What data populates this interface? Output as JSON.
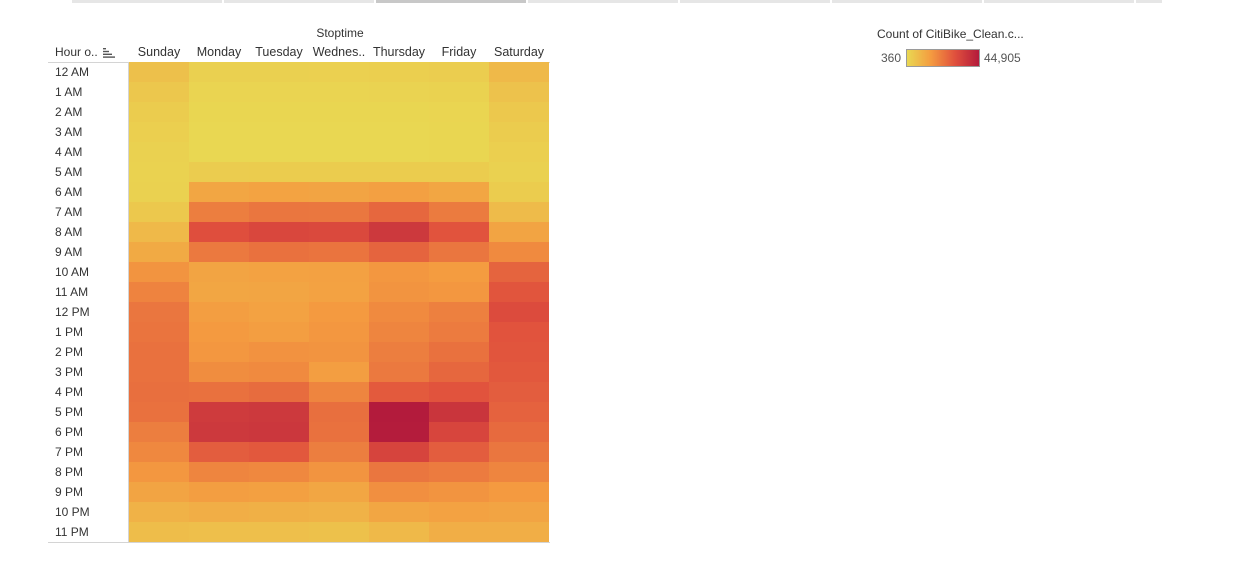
{
  "tabs": {
    "count": 7,
    "active_index": 2
  },
  "header": {
    "column_group_title": "Stoptime",
    "row_header": "Hour o..",
    "sort_icon": "sort-descending-icon"
  },
  "legend": {
    "title": "Count of CitiBike_Clean.c...",
    "min_label": "360",
    "max_label": "44,905",
    "colors": [
      "#e9d852",
      "#f49b40",
      "#e0503d",
      "#b31b3c"
    ]
  },
  "chart_data": {
    "type": "heatmap",
    "title": "",
    "x_title": "Stoptime",
    "y_title": "Hour o..",
    "x": [
      "Sunday",
      "Monday",
      "Tuesday",
      "Wednes..",
      "Thursday",
      "Friday",
      "Saturday"
    ],
    "y": [
      "12 AM",
      "1 AM",
      "2 AM",
      "3 AM",
      "4 AM",
      "5 AM",
      "6 AM",
      "7 AM",
      "8 AM",
      "9 AM",
      "10 AM",
      "11 AM",
      "12 PM",
      "1 PM",
      "2 PM",
      "3 PM",
      "4 PM",
      "5 PM",
      "6 PM",
      "7 PM",
      "8 PM",
      "9 PM",
      "10 PM",
      "11 PM"
    ],
    "color_range": [
      360,
      44905
    ],
    "values": [
      [
        6200,
        2300,
        2300,
        2400,
        2500,
        3100,
        7800
      ],
      [
        4600,
        1400,
        1300,
        1400,
        1500,
        1800,
        5600
      ],
      [
        3400,
        900,
        800,
        900,
        900,
        1100,
        4300
      ],
      [
        2600,
        700,
        600,
        600,
        700,
        800,
        3300
      ],
      [
        2000,
        700,
        600,
        600,
        600,
        800,
        2500
      ],
      [
        1700,
        3200,
        3300,
        3300,
        3400,
        3400,
        2000
      ],
      [
        2100,
        12500,
        13200,
        13000,
        13900,
        12500,
        3400
      ],
      [
        4200,
        21000,
        22500,
        22300,
        25500,
        21600,
        7300
      ],
      [
        7900,
        30500,
        32500,
        32000,
        36500,
        29500,
        13000
      ],
      [
        11500,
        22000,
        23500,
        23000,
        26000,
        22500,
        18500
      ],
      [
        16500,
        13000,
        13500,
        13800,
        16000,
        15000,
        26000
      ],
      [
        20000,
        12500,
        12800,
        13500,
        16500,
        16000,
        29000
      ],
      [
        22500,
        14500,
        13500,
        15500,
        18500,
        20500,
        31500
      ],
      [
        23000,
        15500,
        14500,
        16000,
        19500,
        21500,
        29500
      ],
      [
        23500,
        16000,
        17000,
        16500,
        21000,
        23500,
        29000
      ],
      [
        23500,
        18000,
        18500,
        14500,
        22000,
        25500,
        28500
      ],
      [
        24000,
        23500,
        24500,
        19500,
        28000,
        29500,
        27500
      ],
      [
        23500,
        36000,
        36500,
        24000,
        44905,
        37500,
        26500
      ],
      [
        21000,
        36500,
        37000,
        23500,
        44500,
        33000,
        25000
      ],
      [
        19000,
        27500,
        28500,
        21000,
        33500,
        27500,
        22500
      ],
      [
        16000,
        19500,
        19000,
        16500,
        22500,
        21500,
        19500
      ],
      [
        13000,
        14500,
        14000,
        12500,
        17500,
        16500,
        15500
      ],
      [
        9500,
        10500,
        10000,
        9500,
        12500,
        13500,
        13000
      ],
      [
        7000,
        6500,
        6500,
        6000,
        8000,
        10500,
        10500
      ]
    ]
  }
}
